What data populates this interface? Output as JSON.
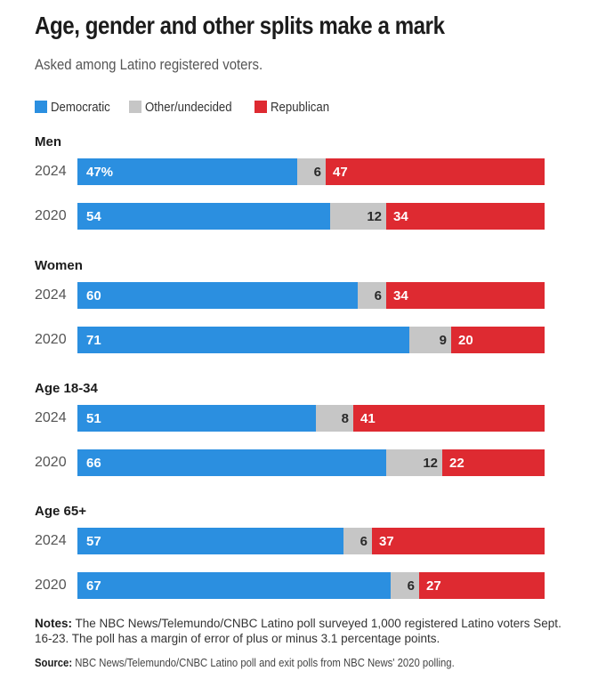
{
  "title": "Age, gender and other splits make a mark",
  "subtitle": "Asked among Latino registered voters.",
  "colors": {
    "democratic": "#2b8fe0",
    "other": "#c6c6c6",
    "republican": "#de2a31"
  },
  "legend": [
    {
      "label": "Democratic",
      "color": "#2b8fe0"
    },
    {
      "label": "Other/undecided",
      "color": "#c6c6c6"
    },
    {
      "label": "Republican",
      "color": "#de2a31"
    }
  ],
  "chart_data": {
    "type": "bar",
    "orientation": "horizontal",
    "stacked": true,
    "title": "Age, gender and other splits make a mark",
    "subtitle": "Asked among Latino registered voters.",
    "legend_position": "top-left",
    "grid": false,
    "series_names": [
      "Democratic",
      "Other/undecided",
      "Republican"
    ],
    "groups": [
      {
        "label": "Men",
        "rows": [
          {
            "year": "2024",
            "democratic": 47,
            "other": 6,
            "republican": 47,
            "democratic_label": "47%",
            "other_label": "6",
            "republican_label": "47"
          },
          {
            "year": "2020",
            "democratic": 54,
            "other": 12,
            "republican": 34,
            "democratic_label": "54",
            "other_label": "12",
            "republican_label": "34"
          }
        ]
      },
      {
        "label": "Women",
        "rows": [
          {
            "year": "2024",
            "democratic": 60,
            "other": 6,
            "republican": 34,
            "democratic_label": "60",
            "other_label": "6",
            "republican_label": "34"
          },
          {
            "year": "2020",
            "democratic": 71,
            "other": 9,
            "republican": 20,
            "democratic_label": "71",
            "other_label": "9",
            "republican_label": "20"
          }
        ]
      },
      {
        "label": "Age 18-34",
        "rows": [
          {
            "year": "2024",
            "democratic": 51,
            "other": 8,
            "republican": 41,
            "democratic_label": "51",
            "other_label": "8",
            "republican_label": "41"
          },
          {
            "year": "2020",
            "democratic": 66,
            "other": 12,
            "republican": 22,
            "democratic_label": "66",
            "other_label": "12",
            "republican_label": "22"
          }
        ]
      },
      {
        "label": "Age 65+",
        "rows": [
          {
            "year": "2024",
            "democratic": 57,
            "other": 6,
            "republican": 37,
            "democratic_label": "57",
            "other_label": "6",
            "republican_label": "37"
          },
          {
            "year": "2020",
            "democratic": 67,
            "other": 6,
            "republican": 27,
            "democratic_label": "67",
            "other_label": "6",
            "republican_label": "27"
          }
        ]
      }
    ]
  },
  "notes": {
    "label": "Notes:",
    "text": "The NBC News/Telemundo/CNBC Latino poll surveyed 1,000 registered Latino voters Sept. 16-23. The poll has a margin of error of plus or minus 3.1 percentage points."
  },
  "source": {
    "label": "Source:",
    "text": "NBC News/Telemundo/CNBC Latino poll and exit polls from NBC News' 2020 polling."
  }
}
